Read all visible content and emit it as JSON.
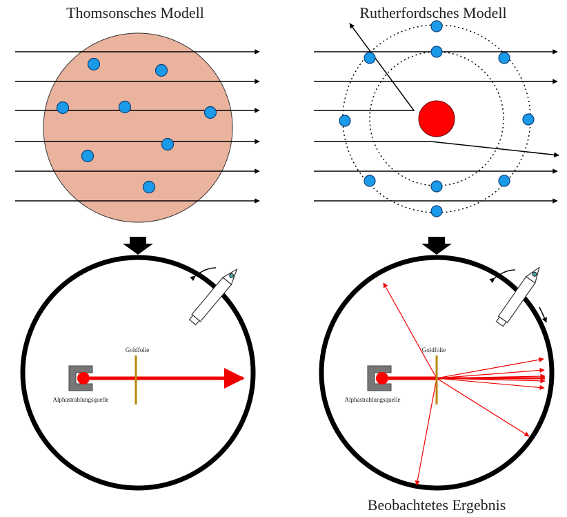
{
  "left": {
    "title": "Thomsonsches Modell",
    "foil_label": "Goldfolie",
    "source_label": "Alphastrahlungsquelle"
  },
  "right": {
    "title": "Rutherfordsches Modell",
    "foil_label": "Goldfolie",
    "source_label": "Alphastrahlungsquelle"
  },
  "caption": "Beobachtetes Ergebnis"
}
